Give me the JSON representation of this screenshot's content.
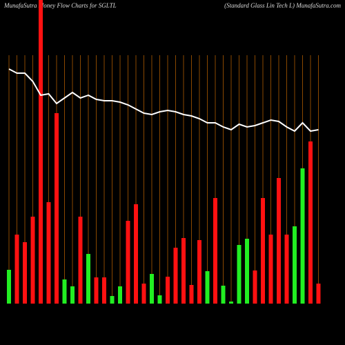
{
  "chart_data": {
    "type": "bar",
    "title": "MunafaSutra  Money Flow  Charts for SGLTL",
    "subtitle": "(Standard Glass Lin  Tech  L) MunafaSutra.com",
    "values": [
      49,
      100,
      89,
      126,
      450,
      147,
      276,
      35,
      25,
      126,
      72,
      38,
      38,
      11,
      25,
      120,
      144,
      29,
      43,
      12,
      39,
      81,
      95,
      27,
      92,
      47,
      153,
      26,
      3,
      85,
      94,
      48,
      153,
      100,
      182,
      100,
      112,
      196,
      235,
      29
    ],
    "bar_colors": [
      "#22ee22",
      "#ff1111",
      "#ff1111",
      "#ff1111",
      "#ff1111",
      "#ff1111",
      "#ff1111",
      "#22ee22",
      "#22ee22",
      "#ff1111",
      "#22ee22",
      "#ff1111",
      "#ff1111",
      "#22ee22",
      "#22ee22",
      "#ff1111",
      "#ff1111",
      "#ff1111",
      "#22ee22",
      "#22ee22",
      "#ff1111",
      "#ff1111",
      "#ff1111",
      "#ff1111",
      "#ff1111",
      "#22ee22",
      "#ff1111",
      "#22ee22",
      "#22ee22",
      "#22ee22",
      "#22ee22",
      "#ff1111",
      "#ff1111",
      "#ff1111",
      "#ff1111",
      "#ff1111",
      "#22ee22",
      "#22ee22",
      "#ff1111",
      "#ff1111"
    ],
    "line_values": [
      340,
      334,
      334,
      322,
      302,
      304,
      290,
      298,
      306,
      298,
      302,
      296,
      294,
      294,
      292,
      288,
      282,
      276,
      274,
      278,
      280,
      278,
      274,
      272,
      268,
      262,
      262,
      256,
      252,
      260,
      256,
      258,
      262,
      266,
      264,
      256,
      250,
      262,
      250,
      252
    ],
    "line_color": "#ffffff",
    "ylim": [
      0,
      440
    ],
    "grid": true
  }
}
